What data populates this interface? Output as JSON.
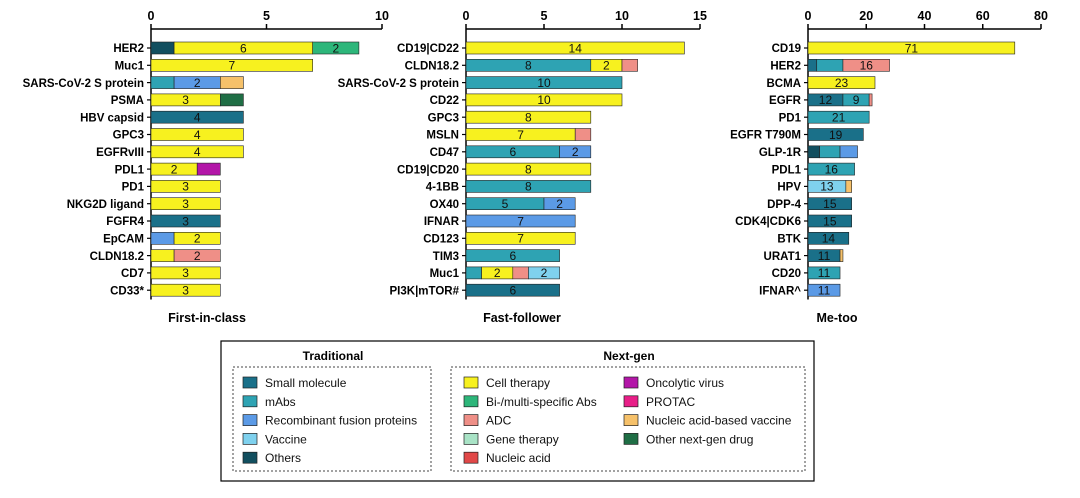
{
  "colors": {
    "small_molecule": "#1a7089",
    "mabs": "#2ea3b3",
    "recombinant": "#5b9ae6",
    "vaccine": "#7fd1ee",
    "others": "#124f5f",
    "cell": "#f7f11f",
    "bispecific": "#2db67a",
    "adc": "#ef8f87",
    "gene": "#a9e3c6",
    "nucleic": "#e14848",
    "oncolytic": "#b316a8",
    "protac": "#e81f88",
    "nucleic_vaccine": "#f6c16a",
    "other_nextgen": "#1f6e45"
  },
  "legend": {
    "traditional_title": "Traditional",
    "nextgen_title": "Next-gen",
    "traditional": [
      {
        "key": "small_molecule",
        "label": "Small molecule"
      },
      {
        "key": "mabs",
        "label": "mAbs"
      },
      {
        "key": "recombinant",
        "label": "Recombinant fusion proteins"
      },
      {
        "key": "vaccine",
        "label": "Vaccine"
      },
      {
        "key": "others",
        "label": "Others"
      }
    ],
    "nextgen_col1": [
      {
        "key": "cell",
        "label": "Cell therapy"
      },
      {
        "key": "bispecific",
        "label": "Bi-/multi-specific Abs"
      },
      {
        "key": "adc",
        "label": "ADC"
      },
      {
        "key": "gene",
        "label": "Gene therapy"
      },
      {
        "key": "nucleic",
        "label": "Nucleic acid"
      }
    ],
    "nextgen_col2": [
      {
        "key": "oncolytic",
        "label": "Oncolytic virus"
      },
      {
        "key": "protac",
        "label": "PROTAC"
      },
      {
        "key": "nucleic_vaccine",
        "label": "Nucleic acid-based vaccine"
      },
      {
        "key": "other_nextgen",
        "label": "Other next-gen drug"
      }
    ]
  },
  "chart_data": [
    {
      "type": "bar",
      "orientation": "horizontal",
      "stacked": true,
      "title": "First-in-class",
      "xlim": [
        0,
        10
      ],
      "xticks": [
        0,
        5,
        10
      ],
      "axis_position": "top",
      "rows": [
        {
          "label": "HER2",
          "segments": [
            {
              "key": "others",
              "value": 1
            },
            {
              "key": "cell",
              "value": 6,
              "text": "6"
            },
            {
              "key": "bispecific",
              "value": 2,
              "text": "2"
            }
          ]
        },
        {
          "label": "Muc1",
          "segments": [
            {
              "key": "cell",
              "value": 7,
              "text": "7"
            }
          ]
        },
        {
          "label": "SARS-CoV-2 S protein",
          "segments": [
            {
              "key": "mabs",
              "value": 1
            },
            {
              "key": "recombinant",
              "value": 2,
              "text": "2"
            },
            {
              "key": "nucleic_vaccine",
              "value": 1
            }
          ]
        },
        {
          "label": "PSMA",
          "segments": [
            {
              "key": "cell",
              "value": 3,
              "text": "3"
            },
            {
              "key": "other_nextgen",
              "value": 1
            }
          ]
        },
        {
          "label": "HBV capsid",
          "segments": [
            {
              "key": "small_molecule",
              "value": 4,
              "text": "4"
            }
          ]
        },
        {
          "label": "GPC3",
          "segments": [
            {
              "key": "cell",
              "value": 4,
              "text": "4"
            }
          ]
        },
        {
          "label": "EGFRvIII",
          "segments": [
            {
              "key": "cell",
              "value": 4,
              "text": "4"
            }
          ]
        },
        {
          "label": "PDL1",
          "segments": [
            {
              "key": "cell",
              "value": 2,
              "text": "2"
            },
            {
              "key": "oncolytic",
              "value": 1
            }
          ]
        },
        {
          "label": "PD1",
          "segments": [
            {
              "key": "cell",
              "value": 3,
              "text": "3"
            }
          ]
        },
        {
          "label": "NKG2D ligand",
          "segments": [
            {
              "key": "cell",
              "value": 3,
              "text": "3"
            }
          ]
        },
        {
          "label": "FGFR4",
          "segments": [
            {
              "key": "small_molecule",
              "value": 3,
              "text": "3"
            }
          ]
        },
        {
          "label": "EpCAM",
          "segments": [
            {
              "key": "recombinant",
              "value": 1
            },
            {
              "key": "cell",
              "value": 2,
              "text": "2"
            }
          ]
        },
        {
          "label": "CLDN18.2",
          "segments": [
            {
              "key": "cell",
              "value": 1
            },
            {
              "key": "adc",
              "value": 2,
              "text": "2"
            }
          ]
        },
        {
          "label": "CD7",
          "segments": [
            {
              "key": "cell",
              "value": 3,
              "text": "3"
            }
          ]
        },
        {
          "label": "CD33*",
          "segments": [
            {
              "key": "cell",
              "value": 3,
              "text": "3"
            }
          ]
        }
      ]
    },
    {
      "type": "bar",
      "orientation": "horizontal",
      "stacked": true,
      "title": "Fast-follower",
      "xlim": [
        0,
        15
      ],
      "xticks": [
        0,
        5,
        10,
        15
      ],
      "axis_position": "top",
      "rows": [
        {
          "label": "CD19|CD22",
          "segments": [
            {
              "key": "cell",
              "value": 14,
              "text": "14"
            }
          ]
        },
        {
          "label": "CLDN18.2",
          "segments": [
            {
              "key": "mabs",
              "value": 8,
              "text": "8"
            },
            {
              "key": "cell",
              "value": 2,
              "text": "2"
            },
            {
              "key": "adc",
              "value": 1
            }
          ]
        },
        {
          "label": "SARS-CoV-2 S protein",
          "segments": [
            {
              "key": "mabs",
              "value": 10,
              "text": "10"
            }
          ]
        },
        {
          "label": "CD22",
          "segments": [
            {
              "key": "cell",
              "value": 10,
              "text": "10"
            }
          ]
        },
        {
          "label": "GPC3",
          "segments": [
            {
              "key": "cell",
              "value": 8,
              "text": "8"
            }
          ]
        },
        {
          "label": "MSLN",
          "segments": [
            {
              "key": "cell",
              "value": 7,
              "text": "7"
            },
            {
              "key": "adc",
              "value": 1
            }
          ]
        },
        {
          "label": "CD47",
          "segments": [
            {
              "key": "mabs",
              "value": 6,
              "text": "6"
            },
            {
              "key": "recombinant",
              "value": 2,
              "text": "2"
            }
          ]
        },
        {
          "label": "CD19|CD20",
          "segments": [
            {
              "key": "cell",
              "value": 8,
              "text": "8"
            }
          ]
        },
        {
          "label": "4-1BB",
          "segments": [
            {
              "key": "mabs",
              "value": 8,
              "text": "8"
            }
          ]
        },
        {
          "label": "OX40",
          "segments": [
            {
              "key": "mabs",
              "value": 5,
              "text": "5"
            },
            {
              "key": "recombinant",
              "value": 2,
              "text": "2"
            }
          ]
        },
        {
          "label": "IFNAR",
          "segments": [
            {
              "key": "recombinant",
              "value": 7,
              "text": "7"
            }
          ]
        },
        {
          "label": "CD123",
          "segments": [
            {
              "key": "cell",
              "value": 7,
              "text": "7"
            }
          ]
        },
        {
          "label": "TIM3",
          "segments": [
            {
              "key": "mabs",
              "value": 6,
              "text": "6"
            }
          ]
        },
        {
          "label": "Muc1",
          "segments": [
            {
              "key": "mabs",
              "value": 1
            },
            {
              "key": "cell",
              "value": 2,
              "text": "2"
            },
            {
              "key": "adc",
              "value": 1
            },
            {
              "key": "vaccine",
              "value": 2,
              "text": "2"
            }
          ]
        },
        {
          "label": "PI3K|mTOR#",
          "segments": [
            {
              "key": "small_molecule",
              "value": 6,
              "text": "6"
            }
          ]
        }
      ]
    },
    {
      "type": "bar",
      "orientation": "horizontal",
      "stacked": true,
      "title": "Me-too",
      "xlim": [
        0,
        80
      ],
      "xticks": [
        0,
        20,
        40,
        60,
        80
      ],
      "axis_position": "top",
      "rows": [
        {
          "label": "CD19",
          "segments": [
            {
              "key": "cell",
              "value": 71,
              "text": "71"
            }
          ]
        },
        {
          "label": "HER2",
          "segments": [
            {
              "key": "small_molecule",
              "value": 3
            },
            {
              "key": "mabs",
              "value": 9
            },
            {
              "key": "adc",
              "value": 16,
              "text": "16"
            }
          ]
        },
        {
          "label": "BCMA",
          "segments": [
            {
              "key": "cell",
              "value": 23,
              "text": "23"
            }
          ]
        },
        {
          "label": "EGFR",
          "segments": [
            {
              "key": "small_molecule",
              "value": 12,
              "text": "12"
            },
            {
              "key": "mabs",
              "value": 9,
              "text": "9"
            },
            {
              "key": "adc",
              "value": 1
            }
          ]
        },
        {
          "label": "PD1",
          "segments": [
            {
              "key": "mabs",
              "value": 21,
              "text": "21"
            }
          ]
        },
        {
          "label": "EGFR T790M",
          "segments": [
            {
              "key": "small_molecule",
              "value": 19,
              "text": "19"
            }
          ]
        },
        {
          "label": "GLP-1R",
          "segments": [
            {
              "key": "others",
              "value": 4
            },
            {
              "key": "mabs",
              "value": 7
            },
            {
              "key": "recombinant",
              "value": 6
            }
          ]
        },
        {
          "label": "PDL1",
          "segments": [
            {
              "key": "mabs",
              "value": 16,
              "text": "16"
            }
          ]
        },
        {
          "label": "HPV",
          "segments": [
            {
              "key": "vaccine",
              "value": 13,
              "text": "13"
            },
            {
              "key": "nucleic_vaccine",
              "value": 2
            }
          ]
        },
        {
          "label": "DPP-4",
          "segments": [
            {
              "key": "small_molecule",
              "value": 15,
              "text": "15"
            }
          ]
        },
        {
          "label": "CDK4|CDK6",
          "segments": [
            {
              "key": "small_molecule",
              "value": 15,
              "text": "15"
            }
          ]
        },
        {
          "label": "BTK",
          "segments": [
            {
              "key": "small_molecule",
              "value": 14,
              "text": "14"
            }
          ]
        },
        {
          "label": "URAT1",
          "segments": [
            {
              "key": "small_molecule",
              "value": 11,
              "text": "11"
            },
            {
              "key": "nucleic_vaccine",
              "value": 1
            }
          ]
        },
        {
          "label": "CD20",
          "segments": [
            {
              "key": "mabs",
              "value": 11,
              "text": "11"
            }
          ]
        },
        {
          "label": "IFNAR^",
          "segments": [
            {
              "key": "recombinant",
              "value": 11,
              "text": "11"
            }
          ]
        }
      ]
    }
  ]
}
